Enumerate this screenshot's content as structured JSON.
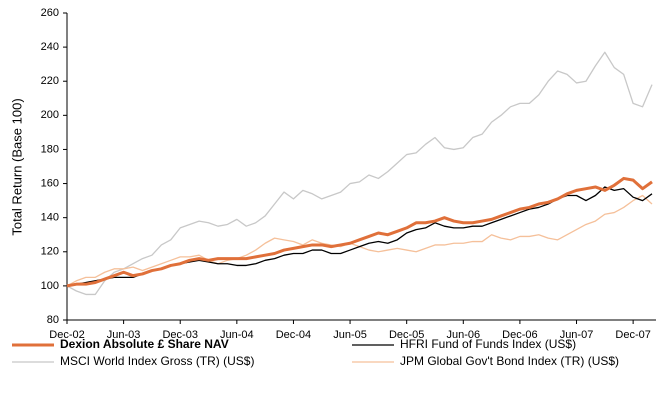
{
  "chart_data": {
    "type": "line",
    "ylabel": "Total Return (Base 100)",
    "categories": [
      "Dec-02",
      null,
      null,
      null,
      null,
      null,
      "Jun-03",
      null,
      null,
      null,
      null,
      null,
      "Dec-03",
      null,
      null,
      null,
      null,
      null,
      "Jun-04",
      null,
      null,
      null,
      null,
      null,
      "Dec-04",
      null,
      null,
      null,
      null,
      null,
      "Jun-05",
      null,
      null,
      null,
      null,
      null,
      "Dec-05",
      null,
      null,
      null,
      null,
      null,
      "Jun-06",
      null,
      null,
      null,
      null,
      null,
      "Dec-06",
      null,
      null,
      null,
      null,
      null,
      "Jun-07",
      null,
      null,
      null,
      null,
      null,
      "Dec-07",
      null,
      null
    ],
    "ylim": [
      80,
      260
    ],
    "yticks": [
      80,
      100,
      120,
      140,
      160,
      180,
      200,
      220,
      240,
      260
    ],
    "series": [
      {
        "name": "MSCI World Index Gross (TR) (US$)",
        "color": "#c8c8c8",
        "width": 1.3,
        "values": [
          100,
          97,
          95,
          95,
          103,
          108,
          110,
          113,
          116,
          118,
          124,
          127,
          134,
          136,
          138,
          137,
          135,
          136,
          139,
          135,
          137,
          141,
          148,
          155,
          151,
          156,
          154,
          151,
          153,
          155,
          160,
          161,
          165,
          163,
          167,
          172,
          177,
          178,
          183,
          187,
          181,
          180,
          181,
          187,
          189,
          196,
          200,
          205,
          207,
          207,
          212,
          220,
          226,
          224,
          219,
          220,
          229,
          237,
          228,
          224,
          207,
          205,
          218
        ]
      },
      {
        "name": "JPM Global Gov't Bond Index (TR) (US$)",
        "color": "#f5c09a",
        "width": 1.3,
        "values": [
          100,
          103,
          105,
          105,
          108,
          110,
          110,
          111,
          109,
          111,
          113,
          115,
          117,
          117,
          118,
          115,
          113,
          115,
          116,
          118,
          121,
          125,
          128,
          127,
          126,
          124,
          127,
          125,
          124,
          123,
          125,
          123,
          121,
          120,
          121,
          122,
          121,
          120,
          122,
          124,
          124,
          125,
          125,
          126,
          126,
          130,
          128,
          127,
          129,
          129,
          130,
          128,
          127,
          130,
          133,
          136,
          138,
          142,
          143,
          146,
          150,
          153,
          148
        ]
      },
      {
        "name": "HFRI Fund of Funds Index (US$)",
        "color": "#000000",
        "width": 1.3,
        "values": [
          100,
          101,
          102,
          103,
          104,
          105,
          105,
          105,
          107,
          109,
          110,
          112,
          113,
          114,
          115,
          114,
          113,
          113,
          112,
          112,
          113,
          115,
          116,
          118,
          119,
          119,
          121,
          121,
          119,
          119,
          121,
          123,
          125,
          126,
          125,
          127,
          131,
          133,
          134,
          137,
          135,
          134,
          134,
          135,
          135,
          137,
          139,
          141,
          143,
          145,
          146,
          148,
          151,
          153,
          153,
          150,
          153,
          158,
          156,
          157,
          152,
          150,
          154
        ]
      },
      {
        "name": "Dexion Absolute £ Share NAV",
        "color": "#e0703a",
        "width": 3,
        "values": [
          100,
          101,
          101,
          102,
          104,
          106,
          108,
          106,
          107,
          109,
          110,
          112,
          113,
          115,
          116,
          115,
          116,
          116,
          116,
          116,
          117,
          118,
          119,
          121,
          122,
          123,
          124,
          124,
          123,
          124,
          125,
          127,
          129,
          131,
          130,
          132,
          134,
          137,
          137,
          138,
          140,
          138,
          137,
          137,
          138,
          139,
          141,
          143,
          145,
          146,
          148,
          149,
          151,
          154,
          156,
          157,
          158,
          156,
          159,
          163,
          162,
          157,
          161
        ]
      }
    ]
  }
}
